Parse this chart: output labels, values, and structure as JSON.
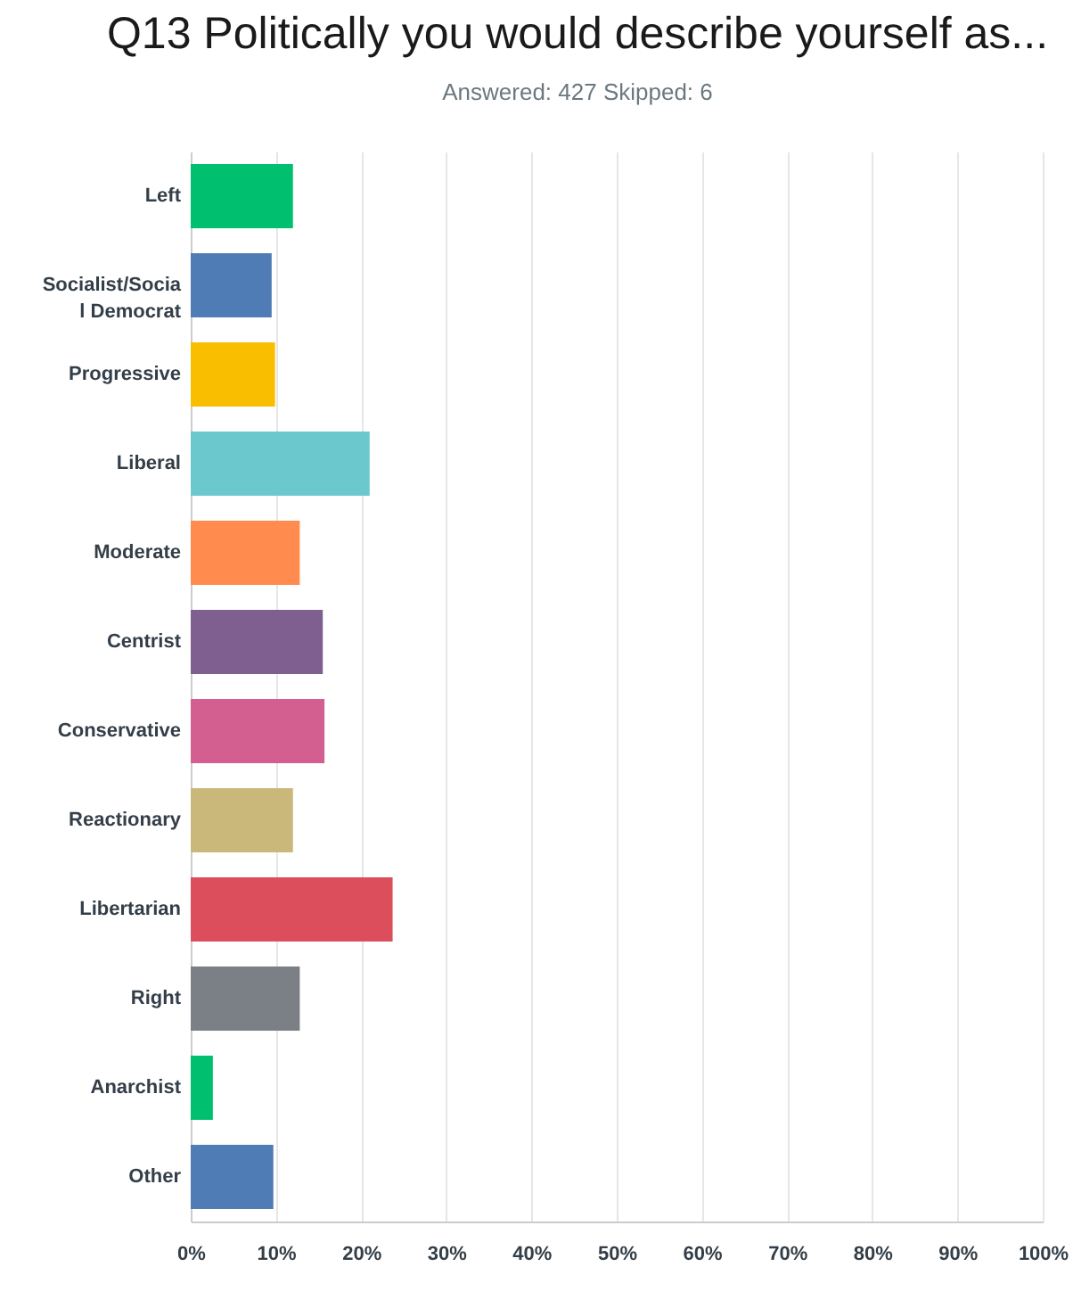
{
  "chart_data": {
    "type": "bar",
    "orientation": "horizontal",
    "title": "Q13 Politically you would describe yourself as...",
    "subtitle": "Answered: 427      Skipped: 6",
    "categories": [
      "Left",
      "Socialist/Socia\nl Democrat",
      "Progressive",
      "Liberal",
      "Moderate",
      "Centrist",
      "Conservative",
      "Reactionary",
      "Libertarian",
      "Right",
      "Anarchist",
      "Other"
    ],
    "values": [
      12.0,
      9.5,
      9.9,
      21.0,
      12.8,
      15.5,
      15.7,
      12.0,
      23.7,
      12.8,
      2.6,
      9.7
    ],
    "colors": [
      "#00bf6f",
      "#507cb6",
      "#f9be00",
      "#6bc8cd",
      "#ff8b4f",
      "#7f5f90",
      "#d25f90",
      "#c9b87a",
      "#dc4e5c",
      "#7a8086",
      "#00bf6f",
      "#507cb6"
    ],
    "xlim": [
      0,
      100
    ],
    "xticks": [
      {
        "value": 0,
        "label": "0%"
      },
      {
        "value": 10,
        "label": "10%"
      },
      {
        "value": 20,
        "label": "20%"
      },
      {
        "value": 30,
        "label": "30%"
      },
      {
        "value": 40,
        "label": "40%"
      },
      {
        "value": 50,
        "label": "50%"
      },
      {
        "value": 60,
        "label": "60%"
      },
      {
        "value": 70,
        "label": "70%"
      },
      {
        "value": 80,
        "label": "80%"
      },
      {
        "value": 90,
        "label": "90%"
      },
      {
        "value": 100,
        "label": "100%"
      }
    ],
    "grid": "x"
  }
}
